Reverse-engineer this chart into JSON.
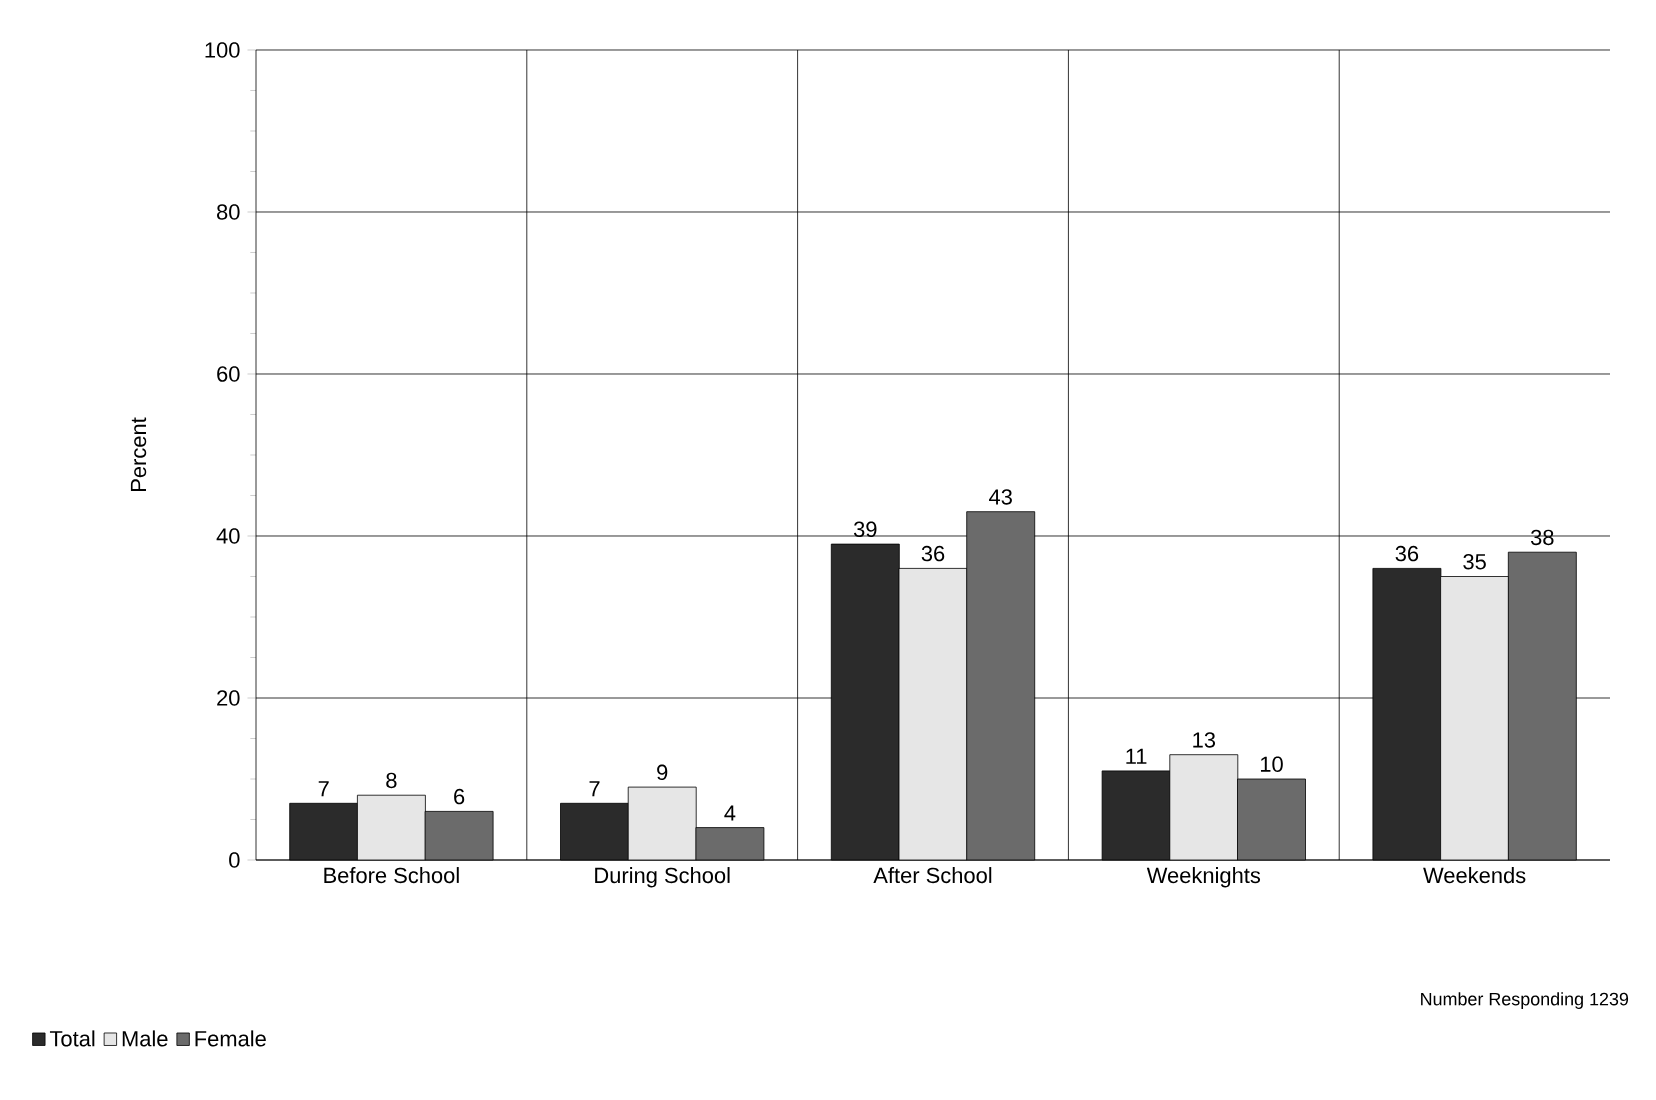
{
  "chart_data": {
    "type": "bar",
    "ylabel": "Percent",
    "categories": [
      "Before School",
      "During School",
      "After School",
      "Weeknights",
      "Weekends"
    ],
    "series": [
      {
        "name": "Total",
        "color": "#2b2b2b",
        "values": [
          7,
          7,
          39,
          11,
          36
        ]
      },
      {
        "name": "Male",
        "color": "#e6e6e6",
        "values": [
          8,
          9,
          36,
          13,
          35
        ]
      },
      {
        "name": "Female",
        "color": "#6b6b6b",
        "values": [
          6,
          4,
          43,
          10,
          38
        ]
      }
    ],
    "ylim": [
      0,
      100
    ],
    "yticks": [
      0,
      20,
      40,
      60,
      80,
      100
    ],
    "grid": "y",
    "data_labels": true,
    "legend": "bottom left",
    "annotations": [
      "Number Responding  1239"
    ]
  }
}
